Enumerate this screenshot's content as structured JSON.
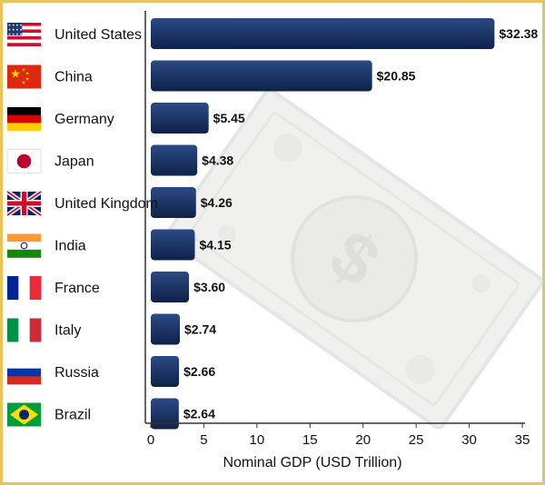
{
  "chart_data": {
    "type": "bar",
    "orientation": "horizontal",
    "categories": [
      "United States",
      "China",
      "Germany",
      "Japan",
      "United Kingdom",
      "India",
      "France",
      "Italy",
      "Russia",
      "Brazil"
    ],
    "values": [
      32.38,
      20.85,
      5.45,
      4.38,
      4.26,
      4.15,
      3.6,
      2.74,
      2.66,
      2.64
    ],
    "value_labels": [
      "$32.38",
      "$20.85",
      "$5.45",
      "$4.38",
      "$4.26",
      "$4.15",
      "$3.60",
      "$2.74",
      "$2.66",
      "$2.64"
    ],
    "xlabel": "Nominal GDP (USD Trillion)",
    "xlim": [
      0,
      35
    ],
    "xticks": [
      0,
      5,
      10,
      15,
      20,
      25,
      30,
      35
    ],
    "grid": false,
    "bar_color": "#1a3566",
    "flag_icons": [
      "flag-united-states-icon",
      "flag-china-icon",
      "flag-germany-icon",
      "flag-japan-icon",
      "flag-united-kingdom-icon",
      "flag-india-icon",
      "flag-france-icon",
      "flag-italy-icon",
      "flag-russia-icon",
      "flag-brazil-icon"
    ],
    "watermark_icon": "dollar-banknote-icon"
  }
}
